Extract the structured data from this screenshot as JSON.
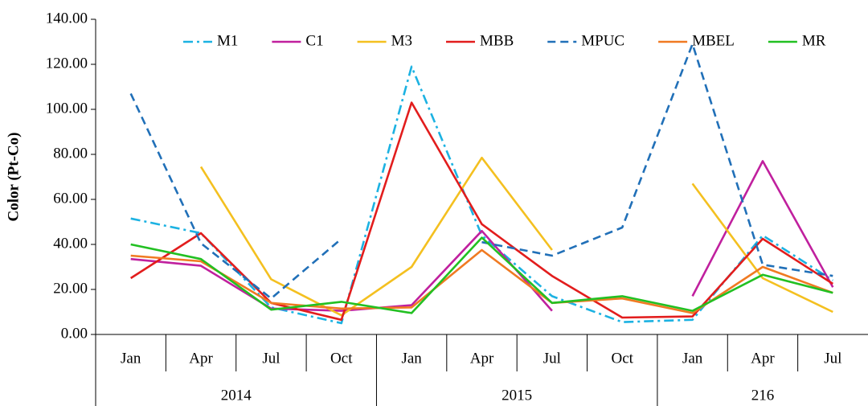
{
  "chart_data": {
    "type": "line",
    "y_label": "Color (Pt-Co)",
    "groups": [
      {
        "name": "2014",
        "categories": [
          "Jan",
          "Apr",
          "Jul",
          "Oct"
        ]
      },
      {
        "name": "2015",
        "categories": [
          "Jan",
          "Apr",
          "Jul",
          "Oct"
        ]
      },
      {
        "name": "216",
        "categories": [
          "Jan",
          "Apr",
          "Jul"
        ]
      }
    ],
    "ylim": [
      0,
      140
    ],
    "yticks": [
      {
        "value": 0,
        "label": "0.00"
      },
      {
        "value": 20,
        "label": "20.00"
      },
      {
        "value": 40,
        "label": "40.00"
      },
      {
        "value": 60,
        "label": "60.00"
      },
      {
        "value": 80,
        "label": "80.00"
      },
      {
        "value": 100,
        "label": "100.00"
      },
      {
        "value": 120,
        "label": "120.00"
      },
      {
        "value": 140,
        "label": "140.00"
      }
    ],
    "grid": false,
    "legend": "top",
    "series": [
      {
        "name": "M1",
        "color": "#1cb2e2",
        "dash": "dashdot",
        "values": [
          51.5,
          45,
          12,
          5,
          119,
          44,
          17,
          5.5,
          6.5,
          44,
          24
        ]
      },
      {
        "name": "C1",
        "color": "#c0209e",
        "dash": "solid",
        "values": [
          33.5,
          30.5,
          11.5,
          10.5,
          13,
          46,
          10.5,
          null,
          17,
          77,
          21
        ]
      },
      {
        "name": "M3",
        "color": "#f4c020",
        "dash": "solid",
        "values": [
          null,
          74.5,
          24.5,
          8.5,
          30,
          78.5,
          37.5,
          null,
          67,
          25,
          10
        ]
      },
      {
        "name": "MBB",
        "color": "#e21d1d",
        "dash": "solid",
        "values": [
          25,
          45,
          14,
          6.5,
          103,
          49,
          26,
          7.5,
          8,
          42.5,
          22.5
        ]
      },
      {
        "name": "MPUC",
        "color": "#2170b8",
        "dash": "dashed",
        "values": [
          107,
          40.5,
          16,
          42.5,
          null,
          41,
          35,
          47.5,
          129,
          31,
          26
        ]
      },
      {
        "name": "MBEL",
        "color": "#f07a22",
        "dash": "solid",
        "values": [
          35,
          32.5,
          14,
          11.5,
          12,
          37.5,
          14,
          16,
          9.5,
          30,
          18.5
        ]
      },
      {
        "name": "MR",
        "color": "#22c022",
        "dash": "solid",
        "values": [
          40,
          33.5,
          11,
          14.5,
          9.5,
          43,
          14,
          17,
          10.5,
          26.5,
          18.5
        ]
      }
    ]
  }
}
